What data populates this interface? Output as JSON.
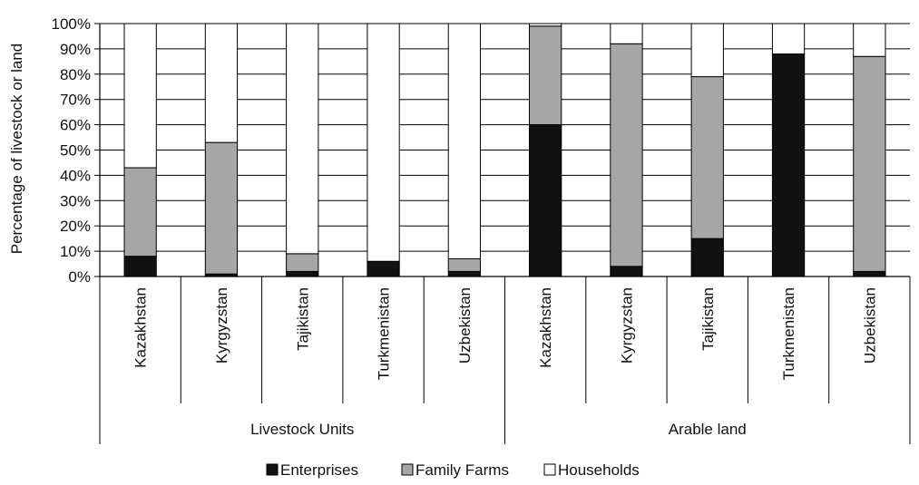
{
  "chart_data": {
    "type": "bar",
    "stacked": true,
    "ylabel": "Percentage of livestock or land",
    "xlabel": "",
    "ylim": [
      0,
      100
    ],
    "y_ticks": [
      "0%",
      "10%",
      "20%",
      "30%",
      "40%",
      "50%",
      "60%",
      "70%",
      "80%",
      "90%",
      "100%"
    ],
    "grid": true,
    "legend_position": "bottom",
    "groups": [
      {
        "label": "Livestock Units",
        "categories": [
          "Kazakhstan",
          "Kyrgyzstan",
          "Tajikistan",
          "Turkmenistan",
          "Uzbekistan"
        ]
      },
      {
        "label": "Arable land",
        "categories": [
          "Kazakhstan",
          "Kyrgyzstan",
          "Tajikistan",
          "Turkmenistan",
          "Uzbekistan"
        ]
      }
    ],
    "series": [
      {
        "name": "Enterprises",
        "color": "#111111",
        "values": [
          8,
          1,
          2,
          6,
          2,
          60,
          4,
          15,
          88,
          2
        ]
      },
      {
        "name": "Family Farms",
        "color": "#a6a6a6",
        "values": [
          35,
          52,
          7,
          0,
          5,
          39,
          88,
          64,
          0,
          85
        ]
      },
      {
        "name": "Households",
        "color": "#ffffff",
        "values": [
          57,
          47,
          91,
          94,
          93,
          1,
          8,
          21,
          12,
          13
        ]
      }
    ]
  }
}
